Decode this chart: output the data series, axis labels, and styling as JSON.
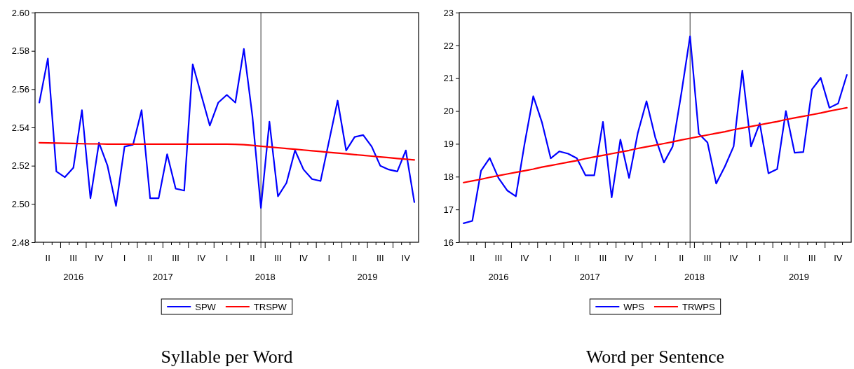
{
  "chart_data": [
    {
      "type": "line",
      "title": "Syllable per Word",
      "categories": [
        null,
        "II",
        null,
        null,
        "III",
        null,
        null,
        "IV",
        null,
        null,
        "I",
        null,
        null,
        "II",
        null,
        null,
        "III",
        null,
        null,
        "IV",
        null,
        null,
        "I",
        null,
        null,
        "II",
        null,
        null,
        "III",
        null,
        null,
        "IV",
        null,
        null,
        "I",
        null,
        null,
        "II",
        null,
        null,
        "III",
        null,
        null,
        "IV",
        null
      ],
      "series": [
        {
          "name": "SPW",
          "color": "#0000ff",
          "values": [
            2.553,
            2.576,
            2.517,
            2.514,
            2.519,
            2.549,
            2.503,
            2.532,
            2.52,
            2.499,
            2.53,
            2.531,
            2.549,
            2.503,
            2.503,
            2.526,
            2.508,
            2.507,
            2.573,
            2.557,
            2.541,
            2.553,
            2.557,
            2.553,
            2.581,
            2.546,
            2.498,
            2.543,
            2.504,
            2.511,
            2.528,
            2.518,
            2.513,
            2.512,
            2.533,
            2.554,
            2.528,
            2.535,
            2.536,
            2.53,
            2.52,
            2.518,
            2.517,
            2.528,
            2.501
          ]
        },
        {
          "name": "TRSPW",
          "color": "#ff0000",
          "values": [
            2.532,
            2.5319,
            2.5318,
            2.5317,
            2.5316,
            2.5315,
            2.5314,
            2.5314,
            2.5313,
            2.5313,
            2.5313,
            2.5313,
            2.5313,
            2.5313,
            2.5313,
            2.5313,
            2.5313,
            2.5313,
            2.5313,
            2.5313,
            2.5313,
            2.5313,
            2.5313,
            2.5312,
            2.531,
            2.5306,
            2.5302,
            2.5298,
            2.5294,
            2.529,
            2.5286,
            2.5282,
            2.5278,
            2.5274,
            2.527,
            2.5266,
            2.5262,
            2.5258,
            2.5254,
            2.525,
            2.5246,
            2.5242,
            2.5238,
            2.5234,
            2.523
          ]
        }
      ],
      "ylim": [
        2.48,
        2.6
      ],
      "yticks": [
        {
          "value": 2.48,
          "label": "2.48"
        },
        {
          "value": 2.5,
          "label": "2.50"
        },
        {
          "value": 2.52,
          "label": "2.52"
        },
        {
          "value": 2.54,
          "label": "2.54"
        },
        {
          "value": 2.56,
          "label": "2.56"
        },
        {
          "value": 2.58,
          "label": "2.58"
        },
        {
          "value": 2.6,
          "label": "2.60"
        }
      ],
      "annotations": [
        "2016",
        "2017",
        "2018",
        "2019"
      ],
      "legend": "bottom"
    },
    {
      "type": "line",
      "title": "Word per Sentence",
      "categories": [
        null,
        "II",
        null,
        null,
        "III",
        null,
        null,
        "IV",
        null,
        null,
        "I",
        null,
        null,
        "II",
        null,
        null,
        "III",
        null,
        null,
        "IV",
        null,
        null,
        "I",
        null,
        null,
        "II",
        null,
        null,
        "III",
        null,
        null,
        "IV",
        null,
        null,
        "I",
        null,
        null,
        "II",
        null,
        null,
        "III",
        null,
        null,
        "IV",
        null
      ],
      "series": [
        {
          "name": "WPS",
          "color": "#0000ff",
          "values": [
            16.58,
            16.65,
            18.18,
            18.57,
            17.96,
            17.58,
            17.4,
            19.0,
            20.45,
            19.65,
            18.56,
            18.77,
            18.7,
            18.56,
            18.04,
            18.04,
            19.67,
            17.37,
            19.13,
            17.96,
            19.33,
            20.3,
            19.2,
            18.43,
            18.92,
            20.54,
            22.28,
            19.31,
            19.04,
            17.79,
            18.31,
            18.92,
            21.23,
            18.92,
            19.63,
            18.1,
            18.23,
            20.0,
            18.73,
            18.75,
            20.66,
            21.01,
            20.1,
            20.23,
            21.1
          ]
        },
        {
          "name": "TRWPS",
          "color": "#ff0000",
          "values": [
            17.82,
            17.87,
            17.92,
            17.98,
            18.03,
            18.08,
            18.13,
            18.18,
            18.23,
            18.29,
            18.34,
            18.39,
            18.44,
            18.49,
            18.55,
            18.6,
            18.65,
            18.7,
            18.75,
            18.8,
            18.86,
            18.91,
            18.96,
            19.01,
            19.06,
            19.12,
            19.17,
            19.22,
            19.27,
            19.32,
            19.37,
            19.43,
            19.48,
            19.53,
            19.58,
            19.63,
            19.68,
            19.74,
            19.79,
            19.84,
            19.89,
            19.94,
            20.0,
            20.05,
            20.1
          ]
        }
      ],
      "ylim": [
        16,
        23
      ],
      "yticks": [
        16,
        17,
        18,
        19,
        20,
        21,
        22,
        23
      ],
      "annotations": [
        "2016",
        "2017",
        "2018",
        "2019"
      ],
      "legend": "bottom"
    }
  ]
}
